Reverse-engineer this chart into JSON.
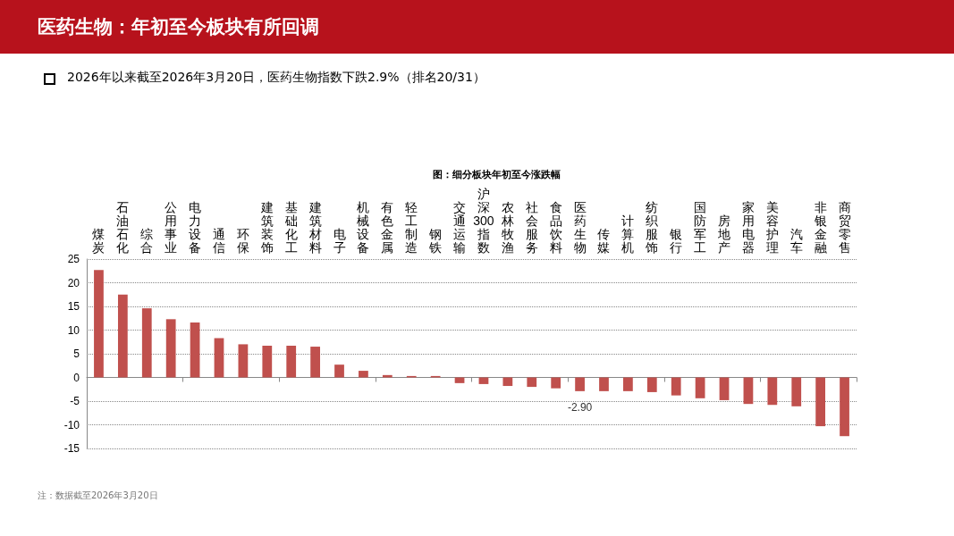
{
  "chart_data": {
    "type": "bar",
    "title": "医药生物：年初至今板块有所回调",
    "subtitle": "2026年以来截至2026年3月20日，医药生物指数下跌2.9%（排名20/31）",
    "annotations": [
      "图：细分板块年初至今涨跌幅",
      "注：数据截至2026年3月20日"
    ],
    "categories": [
      "煤炭",
      "石油石化",
      "综合",
      "公用事业",
      "电力设备",
      "通信",
      "环保",
      "建筑装饰",
      "基础化工",
      "建筑材料",
      "电子",
      "机械设备",
      "有色金属",
      "轻工制造",
      "钢铁",
      "交通运输",
      "沪深300指数",
      "农林牧渔",
      "社会服务",
      "食品饮料",
      "医药生物",
      "传媒",
      "计算机",
      "纺织服饰",
      "银行",
      "国防军工",
      "房地产",
      "家用电器",
      "美容护理",
      "汽车",
      "非银金融",
      "商贸零售"
    ],
    "values": [
      22.7,
      17.5,
      14.6,
      12.3,
      11.6,
      8.3,
      7.0,
      6.7,
      6.7,
      6.5,
      2.7,
      1.4,
      0.5,
      0.3,
      0.3,
      -1.2,
      -1.4,
      -1.8,
      -2.0,
      -2.3,
      -2.9,
      -2.9,
      -2.9,
      -3.1,
      -3.8,
      -4.4,
      -4.8,
      -5.6,
      -5.8,
      -6.1,
      -10.3,
      -12.4
    ],
    "value_labels": [
      null,
      null,
      null,
      null,
      null,
      null,
      null,
      null,
      null,
      null,
      null,
      null,
      null,
      null,
      null,
      null,
      null,
      null,
      null,
      null,
      "-2.90",
      null,
      null,
      null,
      null,
      null,
      null,
      null,
      null,
      null,
      null,
      null
    ],
    "color": "#c0504d",
    "ylim": [
      -15,
      25
    ],
    "yticks": [
      -15,
      -10,
      -5,
      0,
      5,
      10,
      15,
      20,
      25
    ],
    "grid": "y"
  }
}
